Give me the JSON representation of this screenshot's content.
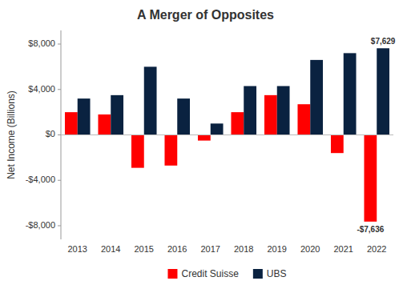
{
  "chart_data": {
    "type": "bar",
    "title": "A Merger of Opposites",
    "ylabel": "Net Income (Billions)",
    "categories": [
      "2013",
      "2014",
      "2015",
      "2016",
      "2017",
      "2018",
      "2019",
      "2020",
      "2021",
      "2022"
    ],
    "series": [
      {
        "name": "Credit Suisse",
        "color": "#FF0000",
        "values": [
          2000,
          1800,
          -2900,
          -2700,
          -500,
          2000,
          3500,
          2700,
          -1600,
          -7636
        ]
      },
      {
        "name": "UBS",
        "color": "#0A2240",
        "values": [
          3200,
          3500,
          6000,
          3200,
          1000,
          4300,
          4300,
          6600,
          7200,
          7629
        ]
      }
    ],
    "ylim": [
      -9200,
      9200
    ],
    "yticks": [
      {
        "value": -8000,
        "label": "-$8,000"
      },
      {
        "value": -4000,
        "label": "-$4,000"
      },
      {
        "value": 0,
        "label": "$0"
      },
      {
        "value": 4000,
        "label": "$4,000"
      },
      {
        "value": 8000,
        "label": "$8,000"
      }
    ],
    "annotations": [
      {
        "text": "$7,629",
        "x": "2022",
        "y": 7629
      },
      {
        "text": "-$7,636",
        "x": "2022",
        "y": -7636
      }
    ],
    "grid": false,
    "legend": "bottom"
  }
}
